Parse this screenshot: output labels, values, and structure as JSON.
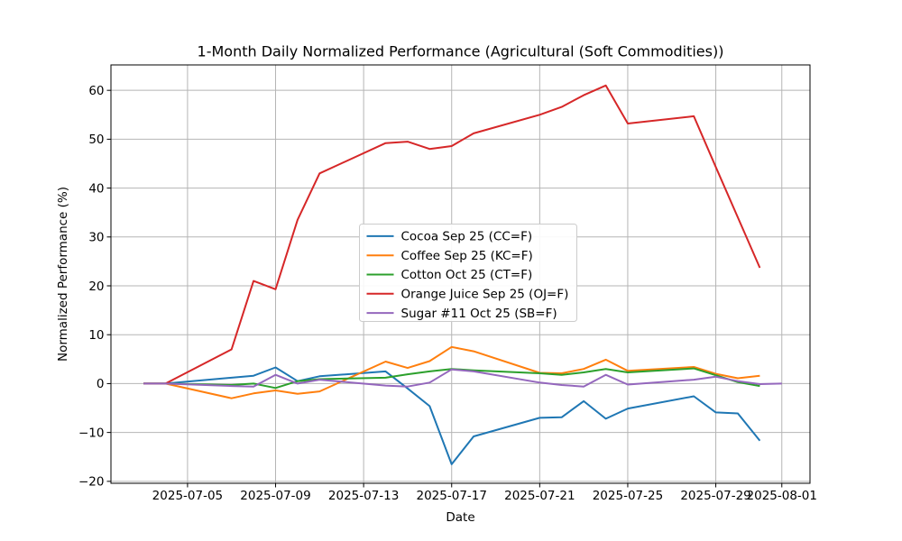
{
  "chart_data": {
    "type": "line",
    "title": "1-Month Daily Normalized Performance (Agricultural (Soft Commodities))",
    "xlabel": "Date",
    "ylabel": "Normalized Performance (%)",
    "grid": true,
    "legend_position": "inside upper-center-left",
    "xlim_days": [
      1.52,
      33.28
    ],
    "ylim": [
      -20.4,
      65.2
    ],
    "x_tick_days": [
      5,
      9,
      13,
      17,
      21,
      25,
      29,
      32
    ],
    "x_tick_labels": [
      "2025-07-05",
      "2025-07-09",
      "2025-07-13",
      "2025-07-17",
      "2025-07-21",
      "2025-07-25",
      "2025-07-29",
      "2025-08-01"
    ],
    "y_ticks": [
      -20,
      -10,
      0,
      10,
      20,
      30,
      40,
      50,
      60
    ],
    "y_tick_labels": [
      "−20",
      "−10",
      "0",
      "10",
      "20",
      "30",
      "40",
      "50",
      "60"
    ],
    "series": [
      {
        "name": "Cocoa Sep 25 (CC=F)",
        "color": "#1f77b4",
        "dates": [
          "2025-07-03",
          "2025-07-04",
          "2025-07-07",
          "2025-07-08",
          "2025-07-09",
          "2025-07-10",
          "2025-07-11",
          "2025-07-14",
          "2025-07-15",
          "2025-07-16",
          "2025-07-17",
          "2025-07-18",
          "2025-07-21",
          "2025-07-22",
          "2025-07-23",
          "2025-07-24",
          "2025-07-25",
          "2025-07-28",
          "2025-07-29",
          "2025-07-30",
          "2025-07-31"
        ],
        "x_days": [
          3,
          4,
          7,
          8,
          9,
          10,
          11,
          14,
          15,
          16,
          17,
          18,
          21,
          22,
          23,
          24,
          25,
          28,
          29,
          30,
          31
        ],
        "values": [
          0.0,
          0.0,
          1.2,
          1.6,
          3.3,
          0.5,
          1.5,
          2.5,
          -1.0,
          -4.6,
          -16.5,
          -10.8,
          -7.0,
          -6.9,
          -3.6,
          -7.2,
          -5.1,
          -2.6,
          -5.9,
          -6.1,
          -11.7
        ]
      },
      {
        "name": "Coffee Sep 25 (KC=F)",
        "color": "#ff7f0e",
        "dates": [
          "2025-07-03",
          "2025-07-04",
          "2025-07-07",
          "2025-07-08",
          "2025-07-09",
          "2025-07-10",
          "2025-07-11",
          "2025-07-14",
          "2025-07-15",
          "2025-07-16",
          "2025-07-17",
          "2025-07-18",
          "2025-07-21",
          "2025-07-22",
          "2025-07-23",
          "2025-07-24",
          "2025-07-25",
          "2025-07-28",
          "2025-07-29",
          "2025-07-30",
          "2025-07-31"
        ],
        "x_days": [
          3,
          4,
          7,
          8,
          9,
          10,
          11,
          14,
          15,
          16,
          17,
          18,
          21,
          22,
          23,
          24,
          25,
          28,
          29,
          30,
          31
        ],
        "values": [
          0.0,
          0.0,
          -3.0,
          -2.0,
          -1.4,
          -2.1,
          -1.6,
          4.5,
          3.2,
          4.6,
          7.5,
          6.6,
          2.2,
          2.1,
          3.0,
          4.9,
          2.6,
          3.4,
          2.0,
          1.1,
          1.6
        ]
      },
      {
        "name": "Cotton Oct 25 (CT=F)",
        "color": "#2ca02c",
        "dates": [
          "2025-07-03",
          "2025-07-04",
          "2025-07-07",
          "2025-07-08",
          "2025-07-09",
          "2025-07-10",
          "2025-07-11",
          "2025-07-14",
          "2025-07-15",
          "2025-07-16",
          "2025-07-17",
          "2025-07-18",
          "2025-07-21",
          "2025-07-22",
          "2025-07-23",
          "2025-07-24",
          "2025-07-25",
          "2025-07-28",
          "2025-07-29",
          "2025-07-30",
          "2025-07-31"
        ],
        "x_days": [
          3,
          4,
          7,
          8,
          9,
          10,
          11,
          14,
          15,
          16,
          17,
          18,
          21,
          22,
          23,
          24,
          25,
          28,
          29,
          30,
          31
        ],
        "values": [
          0.0,
          0.0,
          -0.3,
          0.0,
          -0.9,
          0.5,
          0.9,
          1.2,
          1.9,
          2.5,
          3.0,
          2.7,
          2.1,
          1.8,
          2.3,
          3.0,
          2.3,
          3.1,
          1.7,
          0.3,
          -0.5
        ]
      },
      {
        "name": "Orange Juice Sep 25 (OJ=F)",
        "color": "#d62728",
        "dates": [
          "2025-07-03",
          "2025-07-04",
          "2025-07-07",
          "2025-07-08",
          "2025-07-09",
          "2025-07-10",
          "2025-07-11",
          "2025-07-14",
          "2025-07-15",
          "2025-07-16",
          "2025-07-17",
          "2025-07-18",
          "2025-07-21",
          "2025-07-22",
          "2025-07-23",
          "2025-07-24",
          "2025-07-25",
          "2025-07-28",
          "2025-07-29",
          "2025-07-30",
          "2025-07-31"
        ],
        "x_days": [
          3,
          4,
          7,
          8,
          9,
          10,
          11,
          14,
          15,
          16,
          17,
          18,
          21,
          22,
          23,
          24,
          25,
          28,
          29,
          30,
          31
        ],
        "values": [
          0.0,
          0.0,
          7.0,
          21.0,
          19.3,
          33.5,
          43.0,
          49.2,
          49.5,
          48.0,
          48.6,
          51.2,
          55.0,
          56.6,
          59.0,
          61.0,
          53.2,
          54.7,
          44.3,
          34.0,
          23.7
        ]
      },
      {
        "name": "Sugar #11 Oct 25 (SB=F)",
        "color": "#9467bd",
        "dates": [
          "2025-07-03",
          "2025-07-04",
          "2025-07-07",
          "2025-07-08",
          "2025-07-09",
          "2025-07-10",
          "2025-07-11",
          "2025-07-14",
          "2025-07-15",
          "2025-07-16",
          "2025-07-17",
          "2025-07-18",
          "2025-07-21",
          "2025-07-22",
          "2025-07-23",
          "2025-07-24",
          "2025-07-25",
          "2025-07-28",
          "2025-07-29",
          "2025-07-30",
          "2025-07-31",
          "2025-08-01"
        ],
        "x_days": [
          3,
          4,
          7,
          8,
          9,
          10,
          11,
          14,
          15,
          16,
          17,
          18,
          21,
          22,
          23,
          24,
          25,
          28,
          29,
          30,
          31,
          32
        ],
        "values": [
          0.0,
          0.0,
          -0.5,
          -0.6,
          1.8,
          0.0,
          0.8,
          -0.4,
          -0.6,
          0.2,
          2.9,
          2.5,
          0.2,
          -0.3,
          -0.6,
          1.8,
          -0.2,
          0.8,
          1.4,
          0.5,
          -0.1,
          0.0
        ]
      }
    ]
  }
}
